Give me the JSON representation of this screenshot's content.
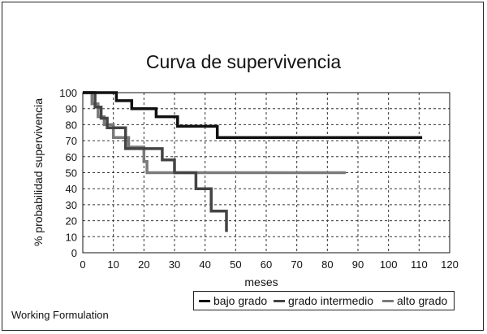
{
  "footer_note": "Working Formulation",
  "chart_data": {
    "type": "line",
    "title": "Curva de supervivencia",
    "xlabel": "meses",
    "ylabel": "% probabilidad supervivencia",
    "xlim": [
      0,
      120
    ],
    "ylim": [
      0,
      100
    ],
    "x_ticks": [
      "0",
      "10",
      "20",
      "30",
      "40",
      "50",
      "60",
      "70",
      "80",
      "90",
      "100",
      "110",
      "120"
    ],
    "y_ticks": [
      "0",
      "10",
      "20",
      "30",
      "40",
      "50",
      "60",
      "70",
      "80",
      "90",
      "100"
    ],
    "grid": true,
    "legend_position": "bottom-right",
    "series": [
      {
        "name": "bajo grado",
        "color": "#111111",
        "step": true,
        "points": [
          [
            0,
            100
          ],
          [
            11,
            100
          ],
          [
            11,
            95
          ],
          [
            16,
            95
          ],
          [
            16,
            90
          ],
          [
            24,
            90
          ],
          [
            24,
            85
          ],
          [
            31,
            85
          ],
          [
            31,
            79
          ],
          [
            44,
            79
          ],
          [
            44,
            72
          ],
          [
            111,
            72
          ]
        ]
      },
      {
        "name": "grado intermedio",
        "color": "#444444",
        "step": true,
        "points": [
          [
            0,
            100
          ],
          [
            4,
            100
          ],
          [
            4,
            91
          ],
          [
            6,
            91
          ],
          [
            6,
            84
          ],
          [
            8,
            84
          ],
          [
            8,
            78
          ],
          [
            14,
            78
          ],
          [
            14,
            65
          ],
          [
            26,
            65
          ],
          [
            26,
            58
          ],
          [
            30,
            58
          ],
          [
            30,
            50
          ],
          [
            37,
            50
          ],
          [
            37,
            40
          ],
          [
            42,
            40
          ],
          [
            42,
            26
          ],
          [
            47,
            26
          ],
          [
            47,
            13
          ]
        ]
      },
      {
        "name": "alto grado",
        "color": "#7a7a7a",
        "step": true,
        "points": [
          [
            0,
            100
          ],
          [
            3,
            100
          ],
          [
            3,
            93
          ],
          [
            5,
            93
          ],
          [
            5,
            85
          ],
          [
            7,
            85
          ],
          [
            7,
            80
          ],
          [
            10,
            80
          ],
          [
            10,
            72
          ],
          [
            15,
            72
          ],
          [
            15,
            66
          ],
          [
            20,
            66
          ],
          [
            20,
            57
          ],
          [
            21,
            57
          ],
          [
            21,
            50
          ],
          [
            86,
            50
          ]
        ]
      }
    ]
  }
}
